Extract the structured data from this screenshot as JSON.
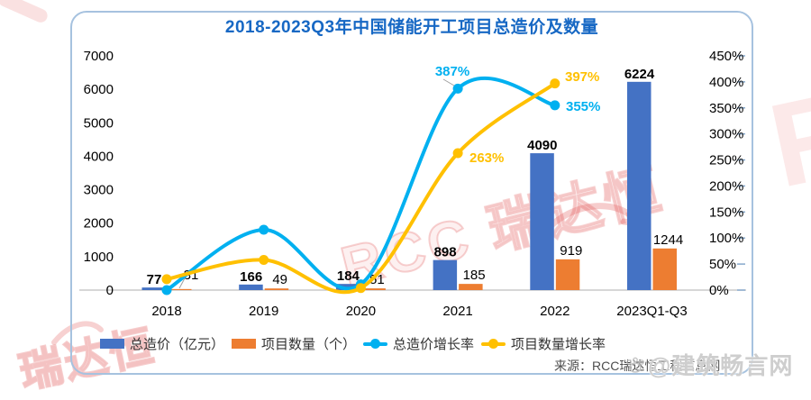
{
  "card": {
    "title": "2018-2023Q3年中国储能开工项目总造价及数量"
  },
  "chart_data": {
    "type": "bar+line combo",
    "title": "2018-2023Q3年中国储能开工项目总造价及数量",
    "categories": [
      "2018",
      "2019",
      "2020",
      "2021",
      "2022",
      "2023Q1-Q3"
    ],
    "series": [
      {
        "name": "总造价（亿元）",
        "type": "bar",
        "axis": "left",
        "color": "#4472C4",
        "values": [
          77,
          166,
          184,
          898,
          4090,
          6224
        ],
        "value_labels": [
          "77",
          "166",
          "184",
          "898",
          "4090",
          "6224"
        ]
      },
      {
        "name": "项目数量（个）",
        "type": "bar",
        "axis": "left",
        "color": "#ED7D31",
        "values": [
          31,
          49,
          51,
          185,
          919,
          1244
        ],
        "value_labels": [
          "31",
          "49",
          "51",
          "185",
          "919",
          "1244"
        ]
      },
      {
        "name": "总造价增长率",
        "type": "line",
        "axis": "right",
        "color": "#00B0F0",
        "values_pct": [
          0,
          116,
          11,
          387,
          355,
          null
        ],
        "point_labels": [
          null,
          null,
          null,
          "387%",
          "355%",
          null
        ]
      },
      {
        "name": "项目数量增长率",
        "type": "line",
        "axis": "right",
        "color": "#FFC000",
        "values_pct": [
          21,
          58,
          4,
          263,
          397,
          null
        ],
        "point_labels": [
          null,
          null,
          null,
          "263%",
          "397%",
          null
        ]
      }
    ],
    "left_axis": {
      "min": 0,
      "max": 7000,
      "step": 1000,
      "ticks": [
        "0",
        "1000",
        "2000",
        "3000",
        "4000",
        "5000",
        "6000",
        "7000"
      ]
    },
    "right_axis": {
      "min": 0,
      "max": 450,
      "step": 50,
      "ticks": [
        "0%",
        "50%",
        "100%",
        "150%",
        "200%",
        "250%",
        "300%",
        "350%",
        "400%",
        "450%"
      ]
    },
    "grid": false,
    "legend_position": "bottom"
  },
  "legend": [
    {
      "label": "总造价（亿元）",
      "swatch": "bar",
      "color": "#4472C4"
    },
    {
      "label": "项目数量（个）",
      "swatch": "bar",
      "color": "#ED7D31"
    },
    {
      "label": "总造价增长率",
      "swatch": "line",
      "color": "#00B0F0"
    },
    {
      "label": "项目数量增长率",
      "swatch": "line",
      "color": "#FFC000"
    }
  ],
  "source": {
    "text": "来源：RCC瑞达恒工程信息网"
  },
  "watermarks": {
    "center_text": "RCC 瑞达恒",
    "bottom_left_text": "瑞达恒",
    "right_letter": "R",
    "social": "@建筑畅言网"
  },
  "theme": {
    "title_color": "#1768C4",
    "border_color": "#A6C2DF",
    "axis_line_color": "#BFBFBF",
    "tick_color": "#87A9CC",
    "watermark_red": "#E25A5A"
  }
}
